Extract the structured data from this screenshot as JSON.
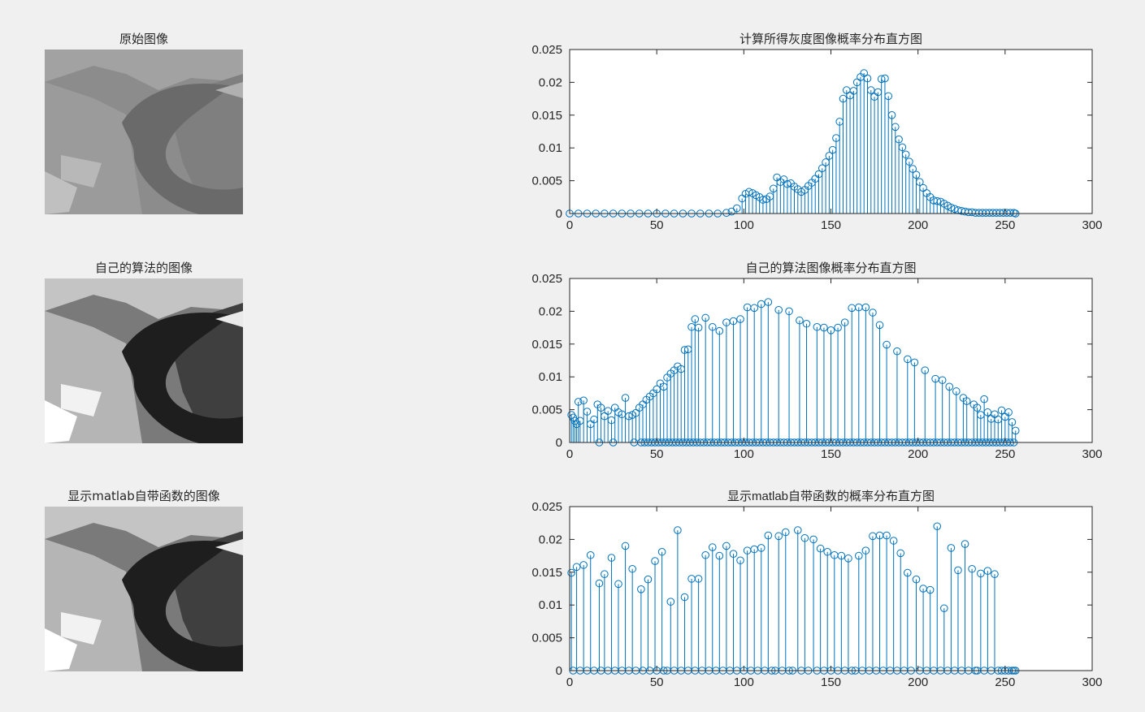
{
  "images": [
    {
      "title": "原始图像",
      "variant": "original"
    },
    {
      "title": "自己的算法的图像",
      "variant": "equalized"
    },
    {
      "title": "显示matlab自带函数的图像",
      "variant": "equalized"
    }
  ],
  "colors": {
    "stem": "#0072bd",
    "axes": "#262626",
    "background": "#f0f0f0"
  },
  "chart_data": [
    {
      "type": "stem",
      "title": "计算所得灰度图像概率分布直方图",
      "xlim": [
        0,
        300
      ],
      "ylim": [
        0,
        0.025
      ],
      "xticks": [
        0,
        50,
        100,
        150,
        200,
        250,
        300
      ],
      "yticks": [
        0,
        0.005,
        0.01,
        0.015,
        0.02,
        0.025
      ],
      "ytick_labels": [
        "0",
        "0.005",
        "0.01",
        "0.015",
        "0.02",
        "0.025"
      ],
      "x": [
        0,
        5,
        10,
        15,
        20,
        25,
        30,
        35,
        40,
        45,
        50,
        55,
        60,
        65,
        70,
        75,
        80,
        85,
        90,
        93,
        96,
        99,
        101,
        103,
        105,
        107,
        109,
        111,
        113,
        115,
        117,
        119,
        121,
        123,
        125,
        127,
        129,
        131,
        133,
        135,
        137,
        139,
        141,
        143,
        145,
        147,
        149,
        151,
        153,
        155,
        157,
        159,
        161,
        163,
        165,
        167,
        169,
        171,
        173,
        175,
        177,
        179,
        181,
        183,
        185,
        187,
        189,
        191,
        193,
        195,
        197,
        199,
        201,
        203,
        205,
        207,
        209,
        211,
        213,
        215,
        217,
        219,
        221,
        223,
        225,
        227,
        229,
        231,
        233,
        235,
        237,
        239,
        241,
        243,
        245,
        247,
        249,
        251,
        253,
        255,
        256
      ],
      "y": [
        0,
        0,
        0,
        0,
        0,
        0,
        0,
        0,
        0,
        0,
        0,
        0,
        0,
        0,
        0,
        0,
        0,
        0,
        0.0001,
        0.0003,
        0.0008,
        0.0023,
        0.003,
        0.0033,
        0.0031,
        0.0028,
        0.0025,
        0.0021,
        0.0022,
        0.0026,
        0.0038,
        0.0055,
        0.0048,
        0.0052,
        0.0045,
        0.0046,
        0.0041,
        0.0037,
        0.0033,
        0.0036,
        0.0042,
        0.0047,
        0.0053,
        0.006,
        0.0069,
        0.0078,
        0.0088,
        0.0097,
        0.0115,
        0.014,
        0.0175,
        0.0188,
        0.018,
        0.0187,
        0.02,
        0.0208,
        0.0214,
        0.0206,
        0.0188,
        0.0178,
        0.0185,
        0.0205,
        0.0206,
        0.0179,
        0.015,
        0.0132,
        0.0113,
        0.0101,
        0.009,
        0.0079,
        0.0068,
        0.0059,
        0.0048,
        0.0039,
        0.0031,
        0.0025,
        0.002,
        0.0019,
        0.0018,
        0.0015,
        0.0012,
        0.0009,
        0.0007,
        0.0005,
        0.0004,
        0.0003,
        0.0002,
        0.0002,
        0.0001,
        0.0001,
        0.0001,
        0.0001,
        0.0001,
        0.0001,
        0.0001,
        0.0001,
        0.0001,
        0.0001,
        0.0001,
        0.0001,
        0
      ]
    },
    {
      "type": "stem",
      "title": "自己的算法图像概率分布直方图",
      "xlim": [
        0,
        300
      ],
      "ylim": [
        0,
        0.025
      ],
      "xticks": [
        0,
        50,
        100,
        150,
        200,
        250,
        300
      ],
      "yticks": [
        0,
        0.005,
        0.01,
        0.015,
        0.02,
        0.025
      ],
      "ytick_labels": [
        "0",
        "0.005",
        "0.01",
        "0.015",
        "0.02",
        "0.025"
      ],
      "x": [
        1,
        2,
        3,
        4,
        5,
        6,
        8,
        10,
        12,
        14,
        16,
        18,
        20,
        22,
        24,
        26,
        28,
        30,
        32,
        34,
        36,
        38,
        40,
        42,
        44,
        46,
        48,
        50,
        52,
        54,
        56,
        58,
        60,
        62,
        64,
        66,
        68,
        70,
        72,
        74,
        78,
        82,
        86,
        90,
        94,
        98,
        102,
        106,
        110,
        114,
        120,
        126,
        132,
        136,
        142,
        146,
        150,
        154,
        158,
        162,
        166,
        170,
        174,
        178,
        182,
        188,
        194,
        198,
        204,
        210,
        214,
        218,
        222,
        226,
        228,
        232,
        234,
        236,
        238,
        240,
        242,
        244,
        246,
        248,
        250,
        252,
        254,
        256
      ],
      "y": [
        0.0042,
        0.0038,
        0.0033,
        0.0028,
        0.0062,
        0.0033,
        0.0064,
        0.0047,
        0.0028,
        0.0035,
        0.0058,
        0.0053,
        0.004,
        0.0048,
        0.0034,
        0.0053,
        0.0046,
        0.0043,
        0.0068,
        0.004,
        0.0042,
        0.0045,
        0.0053,
        0.0058,
        0.0065,
        0.007,
        0.0075,
        0.0081,
        0.009,
        0.0085,
        0.0099,
        0.0105,
        0.011,
        0.0116,
        0.0112,
        0.0141,
        0.0142,
        0.0176,
        0.0188,
        0.0175,
        0.019,
        0.0176,
        0.017,
        0.0183,
        0.0185,
        0.0188,
        0.0206,
        0.0205,
        0.0211,
        0.0214,
        0.0202,
        0.02,
        0.0186,
        0.0181,
        0.0176,
        0.0175,
        0.0171,
        0.0175,
        0.0183,
        0.0205,
        0.0206,
        0.0206,
        0.0198,
        0.0179,
        0.0149,
        0.0139,
        0.0127,
        0.0122,
        0.011,
        0.0097,
        0.0095,
        0.0085,
        0.0078,
        0.0068,
        0.0063,
        0.0058,
        0.0053,
        0.0042,
        0.0066,
        0.0046,
        0.0036,
        0.0043,
        0.0035,
        0.0049,
        0.0039,
        0.0046,
        0.0031,
        0.0018
      ],
      "zero_x": [
        17,
        25,
        37,
        41,
        43,
        45,
        47,
        49,
        51,
        53,
        55,
        57,
        59,
        61,
        63,
        65,
        67,
        69,
        71,
        73,
        75,
        77,
        79,
        81,
        83,
        85,
        87,
        89,
        91,
        93,
        95,
        97,
        99,
        101,
        103,
        105,
        107,
        109,
        111,
        113,
        115,
        117,
        119,
        121,
        123,
        125,
        127,
        129,
        131,
        133,
        135,
        137,
        139,
        141,
        143,
        145,
        147,
        149,
        151,
        153,
        155,
        157,
        159,
        161,
        163,
        165,
        167,
        169,
        171,
        173,
        175,
        177,
        179,
        181,
        183,
        185,
        187,
        189,
        191,
        193,
        195,
        197,
        199,
        201,
        203,
        205,
        207,
        209,
        211,
        213,
        215,
        217,
        219,
        221,
        223,
        225,
        227,
        229,
        231,
        233,
        235,
        237,
        239,
        241,
        243,
        245,
        247,
        249,
        251,
        253,
        255
      ]
    },
    {
      "type": "stem",
      "title": "显示matlab自带函数的概率分布直方图",
      "xlim": [
        0,
        300
      ],
      "ylim": [
        0,
        0.025
      ],
      "xticks": [
        0,
        50,
        100,
        150,
        200,
        250,
        300
      ],
      "yticks": [
        0,
        0.005,
        0.01,
        0.015,
        0.02,
        0.025
      ],
      "ytick_labels": [
        "0",
        "0.005",
        "0.01",
        "0.015",
        "0.02",
        "0.025"
      ],
      "x": [
        1,
        4,
        8,
        12,
        17,
        20,
        24,
        28,
        32,
        36,
        41,
        45,
        49,
        53,
        58,
        62,
        66,
        70,
        74,
        78,
        82,
        86,
        90,
        94,
        98,
        102,
        106,
        110,
        114,
        120,
        124,
        131,
        135,
        140,
        144,
        148,
        152,
        156,
        160,
        166,
        170,
        174,
        178,
        182,
        186,
        190,
        194,
        199,
        203,
        207,
        211,
        215,
        219,
        223,
        227,
        231,
        236,
        240,
        244,
        248,
        252,
        256
      ],
      "y": [
        0.0149,
        0.0158,
        0.0161,
        0.0176,
        0.0133,
        0.0147,
        0.0172,
        0.0132,
        0.019,
        0.0155,
        0.0124,
        0.0139,
        0.0167,
        0.0181,
        0.0105,
        0.0214,
        0.0112,
        0.014,
        0.014,
        0.0176,
        0.0188,
        0.0175,
        0.019,
        0.0178,
        0.0168,
        0.0183,
        0.0185,
        0.0187,
        0.0206,
        0.0205,
        0.0211,
        0.0214,
        0.0202,
        0.02,
        0.0186,
        0.0181,
        0.0176,
        0.0175,
        0.0171,
        0.0175,
        0.0183,
        0.0205,
        0.0206,
        0.0206,
        0.0198,
        0.0179,
        0.0149,
        0.0139,
        0.0125,
        0.0123,
        0.022,
        0.0095,
        0.0187,
        0.0153,
        0.0193,
        0.0155,
        0.0148,
        0.0152,
        0.0147,
        0.0,
        0.0,
        0.0
      ],
      "zero_x": [
        2,
        6,
        10,
        14,
        18,
        22,
        26,
        30,
        34,
        38,
        42,
        46,
        50,
        54,
        56,
        60,
        64,
        68,
        72,
        76,
        80,
        84,
        88,
        92,
        96,
        100,
        104,
        108,
        112,
        116,
        118,
        122,
        126,
        128,
        133,
        137,
        142,
        146,
        150,
        154,
        158,
        162,
        164,
        168,
        172,
        176,
        180,
        184,
        188,
        192,
        196,
        201,
        205,
        209,
        213,
        217,
        221,
        225,
        229,
        233,
        234,
        238,
        242,
        246,
        250,
        254,
        255
      ]
    }
  ]
}
